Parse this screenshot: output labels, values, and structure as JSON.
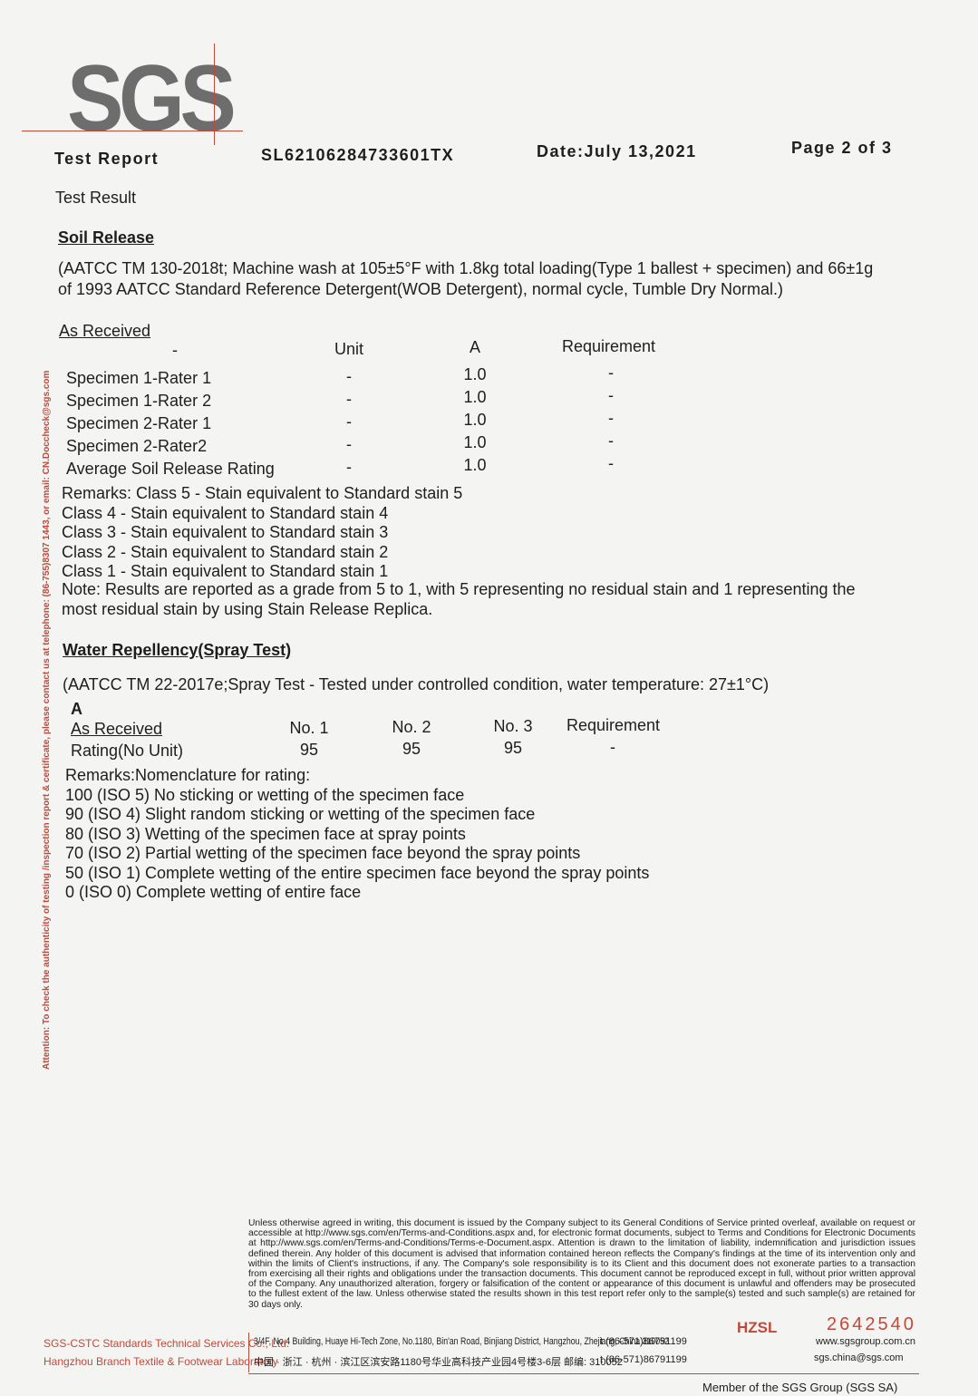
{
  "header": {
    "logo": "SGS",
    "report_label": "Test Report",
    "report_no": "SL62106284733601TX",
    "date": "Date:July 13,2021",
    "page": "Page 2 of 3"
  },
  "test_result": "Test Result",
  "soil_release": {
    "heading": "Soil Release",
    "method": [
      "(AATCC TM 130-2018t; Machine wash at 105±5°F with 1.8kg total loading(Type 1 ballest + specimen) and 66±1g",
      "of 1993 AATCC Standard Reference Detergent(WOB Detergent), normal cycle, Tumble Dry Normal.)"
    ],
    "subheading": "As Received",
    "table": {
      "header": [
        "-",
        "Unit",
        "A",
        "Requirement"
      ],
      "rows": [
        [
          "Specimen 1-Rater 1",
          "-",
          "1.0",
          "-"
        ],
        [
          "Specimen 1-Rater 2",
          "-",
          "1.0",
          "-"
        ],
        [
          "Specimen 2-Rater 1",
          "-",
          "1.0",
          "-"
        ],
        [
          "Specimen 2-Rater2",
          "-",
          "1.0",
          "-"
        ],
        [
          "Average Soil Release Rating",
          "-",
          "1.0",
          "-"
        ]
      ]
    },
    "remarks": [
      "Remarks: Class 5 - Stain equivalent to Standard stain 5",
      "Class 4 - Stain equivalent to Standard stain 4",
      "Class 3 - Stain equivalent to Standard stain 3",
      "Class 2 - Stain equivalent to Standard stain 2",
      "Class 1 - Stain equivalent to Standard stain 1"
    ],
    "note": [
      "Note: Results are reported as a grade from 5 to 1, with 5 representing no residual stain and 1 representing the",
      "most residual stain by using Stain Release Replica."
    ]
  },
  "water_repellency": {
    "heading": "Water Repellency(Spray Test)",
    "method": "(AATCC TM 22-2017e;Spray Test - Tested under controlled condition, water temperature: 27±1°C)",
    "sample": "A",
    "table": {
      "header": [
        "As Received",
        "No. 1",
        "No. 2",
        "No. 3",
        "Requirement"
      ],
      "rows": [
        [
          "Rating(No Unit)",
          "95",
          "95",
          "95",
          "-"
        ]
      ]
    },
    "remarks": [
      "Remarks:Nomenclature for rating:",
      "100 (ISO 5) No sticking or wetting of the specimen face",
      "90 (ISO 4) Slight random sticking or wetting of the specimen face",
      "80 (ISO 3) Wetting of the specimen face at spray points",
      "70 (ISO 2) Partial wetting of the specimen face beyond the spray points",
      "50 (ISO 1) Complete wetting of the entire specimen face beyond the spray points",
      "0 (ISO 0) Complete wetting of entire face"
    ]
  },
  "side_note": "Attention: To check the authenticity of testing /inspection report & certificate, please contact us at telephone: (86-755)8307 1443, or email: CN.Doccheck@sgs.com",
  "footer": {
    "disclaimer": "Unless otherwise agreed in writing, this document is issued by the Company subject to its General Conditions of Service printed overleaf, available on request or accessible at http://www.sgs.com/en/Terms-and-Conditions.aspx and, for electronic format documents, subject to Terms and Conditions for Electronic Documents at http://www.sgs.com/en/Terms-and-Conditions/Terms-e-Document.aspx. Attention is drawn to the limitation of liability, indemnification and jurisdiction issues defined therein. Any holder of this document is advised that information contained hereon reflects the Company's findings at the time of its intervention only and within the limits of Client's instructions, if any. The Company's sole responsibility is to its Client and this document does not exonerate parties to a transaction from exercising all their rights and obligations under the transaction documents. This document cannot be reproduced except in full, without prior written approval of the Company. Any unauthorized alteration, forgery or falsification of the content or appearance of this document is unlawful and offenders may be prosecuted to the fullest extent of the law. Unless otherwise stated the results shown in this test report refer only to the sample(s) tested and such sample(s) are retained for 30 days only.",
    "lab": [
      "SGS-CSTC Standards Technical Services Co., Ltd.",
      "Hangzhou Branch Textile & Footwear Laboratory"
    ],
    "code": "HZSL",
    "serial": "2642540",
    "address_en": "3/4F, No.4 Building, Huaye Hi-Tech Zone, No.1180, Bin'an Road, Binjiang District, Hangzhou, Zhejiang, China 310052",
    "phone_en": "t (86-571)86791199",
    "address_cn": "中国 · 浙江 · 杭州 · 滨江区滨安路1180号华业高科技产业园4号楼3-6层   邮编: 310052",
    "phone_cn": "t (86-571)86791199",
    "website": "www.sgsgroup.com.cn",
    "email": "sgs.china@sgs.com",
    "member": "Member of the SGS Group (SGS SA)"
  }
}
